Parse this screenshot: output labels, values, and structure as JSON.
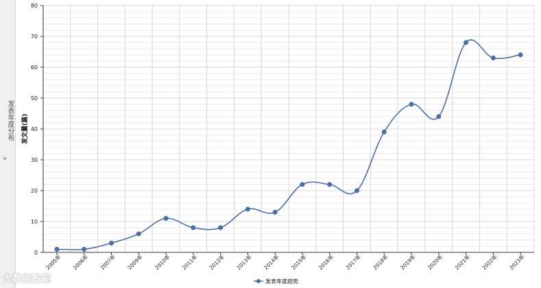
{
  "side_panel": {
    "label": "发表年度分布",
    "chevron": "»"
  },
  "watermark": {
    "text": "大数据智能"
  },
  "colors": {
    "line": "#4a6fa0",
    "grid": "#d7d7d7",
    "axis": "#333333"
  },
  "chart_data": {
    "type": "line",
    "ylabel": "发文量(篇)",
    "ylim": [
      0,
      80
    ],
    "yticks": [
      0,
      10,
      20,
      30,
      40,
      50,
      60,
      70,
      80
    ],
    "categories": [
      "2005年",
      "2006年",
      "2007年",
      "2009年",
      "2010年",
      "2011年",
      "2012年",
      "2013年",
      "2014年",
      "2015年",
      "2016年",
      "2017年",
      "2018年",
      "2019年",
      "2020年",
      "2021年",
      "2022年",
      "2023年"
    ],
    "series": [
      {
        "name": "发表年度趋势",
        "values": [
          1,
          1,
          3,
          6,
          11,
          8,
          8,
          14,
          13,
          22,
          22,
          20,
          39,
          48,
          44,
          68,
          63,
          64
        ]
      }
    ],
    "legend": "bottom-center",
    "grid": true
  }
}
